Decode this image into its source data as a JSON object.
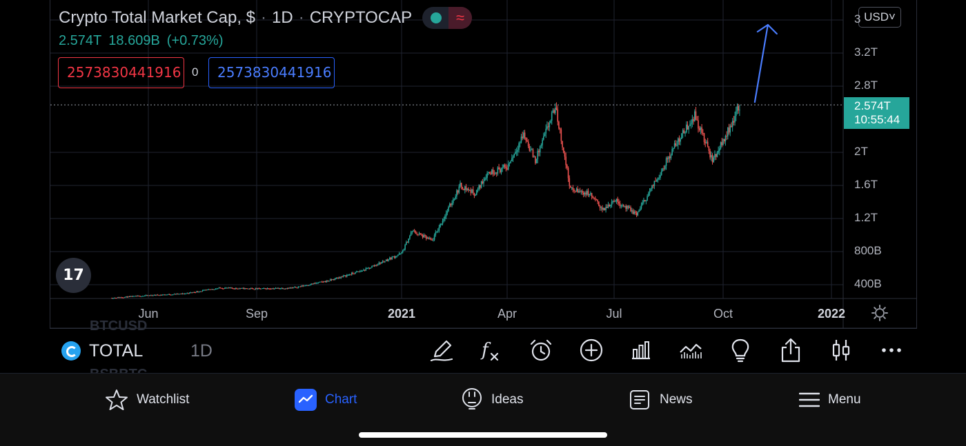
{
  "header": {
    "title": "Crypto Total Market Cap, $",
    "interval": "1D",
    "exchange": "CRYPTOCAP",
    "last": "2.574T",
    "change": "18.609B",
    "change_pct": "(+0.73%)",
    "sell_price": "2573830441916",
    "spread": "0",
    "buy_price": "2573830441916",
    "wave_icon": "≈"
  },
  "currency": {
    "label": "USD",
    "icon": "chevron-down-icon"
  },
  "price_tag": {
    "value": "2.574T",
    "countdown": "10:55:44"
  },
  "logo_text": "17",
  "toolbar": {
    "symbol": "TOTAL",
    "interval": "1D",
    "ghost_above": "BTCUSD",
    "ghost_below": "BSBBTC"
  },
  "nav": {
    "watchlist": "Watchlist",
    "chart": "Chart",
    "ideas": "Ideas",
    "news": "News",
    "menu": "Menu"
  },
  "colors": {
    "up": "#26a69a",
    "down": "#ef5350",
    "accent": "#2962ff",
    "annotation_arrow": "#4a7dff",
    "gridline": "#1f2330"
  },
  "chart_data": {
    "type": "candlestick",
    "title": "Crypto Total Market Cap, $",
    "interval": "1D",
    "x_tick_labels": [
      "Jun",
      "Sep",
      "2021",
      "Apr",
      "Jul",
      "Oct",
      "2022"
    ],
    "y_tick_labels": [
      "400B",
      "800B",
      "1.2T",
      "1.6T",
      "2T",
      "2.8T",
      "3.2T",
      "3"
    ],
    "ylim": [
      0.25,
      3.6
    ],
    "y_unit": "T USD",
    "current_price": 2.574,
    "series": [
      {
        "name": "TOTAL",
        "close_trend": [
          [
            "2020-05-01",
            0.24
          ],
          [
            "2020-06-01",
            0.27
          ],
          [
            "2020-07-01",
            0.29
          ],
          [
            "2020-08-01",
            0.36
          ],
          [
            "2020-09-01",
            0.35
          ],
          [
            "2020-10-01",
            0.36
          ],
          [
            "2020-11-01",
            0.45
          ],
          [
            "2020-12-01",
            0.58
          ],
          [
            "2021-01-01",
            0.78
          ],
          [
            "2021-01-10",
            1.05
          ],
          [
            "2021-01-27",
            0.93
          ],
          [
            "2021-02-20",
            1.6
          ],
          [
            "2021-03-05",
            1.5
          ],
          [
            "2021-03-15",
            1.75
          ],
          [
            "2021-04-01",
            1.82
          ],
          [
            "2021-04-15",
            2.22
          ],
          [
            "2021-04-25",
            1.9
          ],
          [
            "2021-05-12",
            2.55
          ],
          [
            "2021-05-25",
            1.55
          ],
          [
            "2021-06-10",
            1.5
          ],
          [
            "2021-06-22",
            1.3
          ],
          [
            "2021-07-01",
            1.43
          ],
          [
            "2021-07-20",
            1.25
          ],
          [
            "2021-08-05",
            1.65
          ],
          [
            "2021-08-20",
            2.05
          ],
          [
            "2021-09-07",
            2.45
          ],
          [
            "2021-09-22",
            1.9
          ],
          [
            "2021-10-05",
            2.25
          ],
          [
            "2021-10-15",
            2.57
          ]
        ]
      }
    ],
    "annotation": {
      "type": "arrow",
      "from": [
        "2021-10-15",
        2.574
      ],
      "to": [
        "2021-11-08",
        3.5
      ]
    },
    "grid": true
  }
}
